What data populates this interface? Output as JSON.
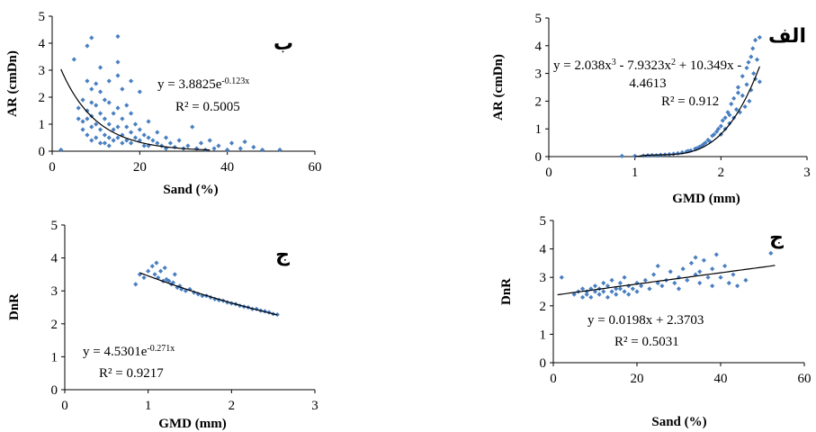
{
  "colors": {
    "points": "#4a7fc1",
    "trend": "#000000",
    "axis": "#000000"
  },
  "chart_data": [
    {
      "id": "ba",
      "type": "scatter",
      "panel_label": "ب",
      "xlabel": "Sand (%)",
      "ylabel": "AR (cmDn)",
      "xlim": [
        0,
        60
      ],
      "ylim": [
        0,
        5
      ],
      "xticks": [
        "0",
        "20",
        "40",
        "60"
      ],
      "yticks": [
        "0",
        "1",
        "2",
        "3",
        "4",
        "5"
      ],
      "equation_base": "y = 3.8825e",
      "equation_exp": "-0.123x",
      "r2": "R² = 0.5005",
      "trend": {
        "kind": "exp",
        "a": 3.8825,
        "b": -0.123,
        "x0": 2,
        "x1": 36
      },
      "points": [
        [
          2,
          0.05
        ],
        [
          5,
          3.4
        ],
        [
          6,
          1.6
        ],
        [
          6,
          1.2
        ],
        [
          7,
          1.9
        ],
        [
          7,
          1.1
        ],
        [
          7,
          0.8
        ],
        [
          8,
          3.9
        ],
        [
          8,
          2.6
        ],
        [
          8,
          1.5
        ],
        [
          8,
          1.2
        ],
        [
          8,
          0.6
        ],
        [
          9,
          4.2
        ],
        [
          9,
          2.3
        ],
        [
          9,
          1.8
        ],
        [
          9,
          1.3
        ],
        [
          9,
          0.9
        ],
        [
          9,
          0.4
        ],
        [
          10,
          2.5
        ],
        [
          10,
          1.7
        ],
        [
          10,
          1.0
        ],
        [
          10,
          0.5
        ],
        [
          11,
          3.1
        ],
        [
          11,
          2.2
        ],
        [
          11,
          1.4
        ],
        [
          11,
          0.8
        ],
        [
          11,
          0.3
        ],
        [
          12,
          1.9
        ],
        [
          12,
          1.2
        ],
        [
          12,
          0.6
        ],
        [
          12,
          0.3
        ],
        [
          13,
          2.6
        ],
        [
          13,
          1.8
        ],
        [
          13,
          1.0
        ],
        [
          13,
          0.5
        ],
        [
          13,
          0.2
        ],
        [
          14,
          1.4
        ],
        [
          14,
          0.8
        ],
        [
          14,
          0.4
        ],
        [
          15,
          4.25
        ],
        [
          15,
          3.3
        ],
        [
          15,
          2.8
        ],
        [
          15,
          1.6
        ],
        [
          15,
          0.9
        ],
        [
          15,
          0.5
        ],
        [
          16,
          2.3
        ],
        [
          16,
          1.2
        ],
        [
          16,
          0.6
        ],
        [
          16,
          0.3
        ],
        [
          17,
          1.7
        ],
        [
          17,
          0.9
        ],
        [
          17,
          0.4
        ],
        [
          18,
          2.6
        ],
        [
          18,
          1.4
        ],
        [
          18,
          0.7
        ],
        [
          18,
          0.3
        ],
        [
          19,
          1.0
        ],
        [
          19,
          0.5
        ],
        [
          20,
          2.2
        ],
        [
          20,
          0.8
        ],
        [
          20,
          0.4
        ],
        [
          21,
          0.6
        ],
        [
          21,
          0.2
        ],
        [
          22,
          1.1
        ],
        [
          22,
          0.5
        ],
        [
          22,
          0.2
        ],
        [
          23,
          0.4
        ],
        [
          24,
          0.7
        ],
        [
          24,
          0.3
        ],
        [
          25,
          0.2
        ],
        [
          26,
          0.5
        ],
        [
          26,
          0.1
        ],
        [
          27,
          0.3
        ],
        [
          28,
          0.15
        ],
        [
          29,
          0.4
        ],
        [
          30,
          0.1
        ],
        [
          31,
          0.2
        ],
        [
          32,
          0.9
        ],
        [
          33,
          0.1
        ],
        [
          34,
          0.3
        ],
        [
          35,
          0.05
        ],
        [
          36,
          0.4
        ],
        [
          37,
          0.1
        ],
        [
          38,
          0.2
        ],
        [
          40,
          0.05
        ],
        [
          41,
          0.3
        ],
        [
          43,
          0.1
        ],
        [
          44,
          0.35
        ],
        [
          46,
          0.15
        ],
        [
          48,
          0.05
        ],
        [
          52,
          0.05
        ]
      ]
    },
    {
      "id": "alef",
      "type": "scatter",
      "panel_label": "الف",
      "xlabel": "GMD (mm)",
      "ylabel": "AR (cmDn)",
      "xlim": [
        0,
        3
      ],
      "ylim": [
        0,
        5
      ],
      "xticks": [
        "0",
        "1",
        "2",
        "3"
      ],
      "yticks": [
        "0",
        "1",
        "2",
        "3",
        "4",
        "5"
      ],
      "equation_line1_parts": [
        "y = 2.038x",
        "3",
        " - 7.9323x",
        "2",
        " + 10.349x -"
      ],
      "equation_line2": "4.4613",
      "r2": "R² = 0.912",
      "trend": {
        "kind": "poly3",
        "c": [
          -4.4613,
          10.349,
          -7.9323,
          2.038
        ],
        "x0": 1.0,
        "x1": 2.45
      },
      "points": [
        [
          0.85,
          0.02
        ],
        [
          1.0,
          0.02
        ],
        [
          1.1,
          0.03
        ],
        [
          1.15,
          0.04
        ],
        [
          1.2,
          0.05
        ],
        [
          1.25,
          0.04
        ],
        [
          1.3,
          0.06
        ],
        [
          1.35,
          0.07
        ],
        [
          1.4,
          0.08
        ],
        [
          1.45,
          0.1
        ],
        [
          1.5,
          0.12
        ],
        [
          1.55,
          0.15
        ],
        [
          1.6,
          0.18
        ],
        [
          1.62,
          0.2
        ],
        [
          1.65,
          0.22
        ],
        [
          1.7,
          0.28
        ],
        [
          1.72,
          0.3
        ],
        [
          1.75,
          0.35
        ],
        [
          1.78,
          0.4
        ],
        [
          1.8,
          0.45
        ],
        [
          1.82,
          0.5
        ],
        [
          1.85,
          0.6
        ],
        [
          1.87,
          0.55
        ],
        [
          1.9,
          0.75
        ],
        [
          1.92,
          0.8
        ],
        [
          1.95,
          0.9
        ],
        [
          1.97,
          1.0
        ],
        [
          2.0,
          1.1
        ],
        [
          2.0,
          0.8
        ],
        [
          2.02,
          1.3
        ],
        [
          2.05,
          1.4
        ],
        [
          2.05,
          1.0
        ],
        [
          2.08,
          1.6
        ],
        [
          2.1,
          1.5
        ],
        [
          2.1,
          1.2
        ],
        [
          2.12,
          1.9
        ],
        [
          2.15,
          2.1
        ],
        [
          2.15,
          1.4
        ],
        [
          2.18,
          1.7
        ],
        [
          2.2,
          2.3
        ],
        [
          2.2,
          2.5
        ],
        [
          2.22,
          1.6
        ],
        [
          2.25,
          2.9
        ],
        [
          2.25,
          2.2
        ],
        [
          2.28,
          1.8
        ],
        [
          2.3,
          3.2
        ],
        [
          2.3,
          2.6
        ],
        [
          2.32,
          3.4
        ],
        [
          2.33,
          2.0
        ],
        [
          2.35,
          3.6
        ],
        [
          2.35,
          2.4
        ],
        [
          2.37,
          3.9
        ],
        [
          2.38,
          3.0
        ],
        [
          2.4,
          4.2
        ],
        [
          2.4,
          2.8
        ],
        [
          2.42,
          3.5
        ],
        [
          2.45,
          4.3
        ],
        [
          2.45,
          2.7
        ]
      ]
    },
    {
      "id": "jim_left",
      "type": "scatter",
      "panel_label": "ج",
      "xlabel": "GMD (mm)",
      "ylabel": "DnR",
      "xlim": [
        0,
        3
      ],
      "ylim": [
        0,
        5
      ],
      "xticks": [
        "0",
        "1",
        "2",
        "3"
      ],
      "yticks": [
        "0",
        "1",
        "2",
        "3",
        "4",
        "5"
      ],
      "equation_base": "y = 4.5301e",
      "equation_exp": "-0.271x",
      "r2": "R² = 0.9217",
      "trend": {
        "kind": "exp",
        "a": 4.5301,
        "b": -0.271,
        "x0": 0.9,
        "x1": 2.55
      },
      "points": [
        [
          0.85,
          3.2
        ],
        [
          0.9,
          3.5
        ],
        [
          0.95,
          3.4
        ],
        [
          1.0,
          3.6
        ],
        [
          1.05,
          3.75
        ],
        [
          1.08,
          3.5
        ],
        [
          1.1,
          3.85
        ],
        [
          1.12,
          3.4
        ],
        [
          1.15,
          3.6
        ],
        [
          1.18,
          3.3
        ],
        [
          1.2,
          3.7
        ],
        [
          1.22,
          3.35
        ],
        [
          1.25,
          3.3
        ],
        [
          1.28,
          3.2
        ],
        [
          1.3,
          3.25
        ],
        [
          1.32,
          3.5
        ],
        [
          1.35,
          3.1
        ],
        [
          1.38,
          3.15
        ],
        [
          1.4,
          3.05
        ],
        [
          1.45,
          3.0
        ],
        [
          1.5,
          3.05
        ],
        [
          1.55,
          2.95
        ],
        [
          1.6,
          2.9
        ],
        [
          1.65,
          2.85
        ],
        [
          1.7,
          2.85
        ],
        [
          1.75,
          2.8
        ],
        [
          1.8,
          2.75
        ],
        [
          1.85,
          2.72
        ],
        [
          1.9,
          2.7
        ],
        [
          1.95,
          2.65
        ],
        [
          2.0,
          2.62
        ],
        [
          2.05,
          2.6
        ],
        [
          2.1,
          2.55
        ],
        [
          2.15,
          2.52
        ],
        [
          2.2,
          2.5
        ],
        [
          2.25,
          2.45
        ],
        [
          2.3,
          2.45
        ],
        [
          2.35,
          2.4
        ],
        [
          2.4,
          2.38
        ],
        [
          2.45,
          2.35
        ],
        [
          2.5,
          2.3
        ],
        [
          2.55,
          2.28
        ]
      ]
    },
    {
      "id": "jim_right",
      "type": "scatter",
      "panel_label": "ج",
      "xlabel": "Sand (%)",
      "ylabel": "DnR",
      "xlim": [
        0,
        60
      ],
      "ylim": [
        0,
        5
      ],
      "xticks": [
        "0",
        "20",
        "40",
        "60"
      ],
      "yticks": [
        "0",
        "1",
        "2",
        "3",
        "4",
        "5"
      ],
      "equation_base": "y = 0.0198x + 2.3703",
      "equation_exp": "",
      "r2": "R² = 0.5031",
      "trend": {
        "kind": "lin",
        "m": 0.0198,
        "c": 2.3703,
        "x0": 1,
        "x1": 53
      },
      "points": [
        [
          2,
          3.0
        ],
        [
          5,
          2.4
        ],
        [
          6,
          2.5
        ],
        [
          7,
          2.3
        ],
        [
          7,
          2.6
        ],
        [
          8,
          2.5
        ],
        [
          8,
          2.4
        ],
        [
          9,
          2.6
        ],
        [
          9,
          2.3
        ],
        [
          10,
          2.5
        ],
        [
          10,
          2.7
        ],
        [
          11,
          2.4
        ],
        [
          11,
          2.6
        ],
        [
          12,
          2.8
        ],
        [
          12,
          2.5
        ],
        [
          13,
          2.3
        ],
        [
          13,
          2.7
        ],
        [
          14,
          2.9
        ],
        [
          14,
          2.5
        ],
        [
          15,
          2.6
        ],
        [
          15,
          2.4
        ],
        [
          16,
          2.8
        ],
        [
          16,
          2.6
        ],
        [
          17,
          2.5
        ],
        [
          17,
          3.0
        ],
        [
          18,
          2.7
        ],
        [
          18,
          2.4
        ],
        [
          19,
          2.6
        ],
        [
          20,
          2.8
        ],
        [
          20,
          2.5
        ],
        [
          21,
          2.7
        ],
        [
          22,
          2.9
        ],
        [
          23,
          2.6
        ],
        [
          24,
          3.1
        ],
        [
          25,
          2.8
        ],
        [
          25,
          3.4
        ],
        [
          26,
          2.7
        ],
        [
          27,
          2.9
        ],
        [
          28,
          3.2
        ],
        [
          29,
          2.8
        ],
        [
          30,
          3.0
        ],
        [
          30,
          2.6
        ],
        [
          31,
          3.3
        ],
        [
          32,
          2.9
        ],
        [
          33,
          3.5
        ],
        [
          34,
          3.1
        ],
        [
          34,
          3.7
        ],
        [
          35,
          2.8
        ],
        [
          35,
          3.2
        ],
        [
          36,
          3.6
        ],
        [
          37,
          3.0
        ],
        [
          38,
          3.3
        ],
        [
          38,
          2.7
        ],
        [
          39,
          3.8
        ],
        [
          40,
          3.0
        ],
        [
          41,
          3.4
        ],
        [
          42,
          2.8
        ],
        [
          43,
          3.1
        ],
        [
          44,
          2.7
        ],
        [
          46,
          2.9
        ],
        [
          52,
          3.85
        ]
      ]
    }
  ]
}
